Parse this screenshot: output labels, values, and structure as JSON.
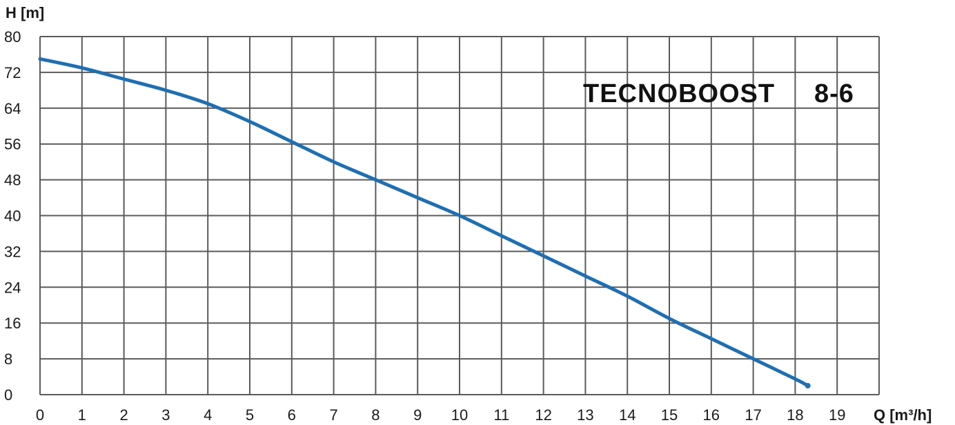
{
  "chart_data": {
    "type": "line",
    "title": "TECNOBOOST 8-6",
    "title_parts": {
      "brand": "TECNOBOOST",
      "model": "8-6"
    },
    "xlabel": "Q [m³/h]",
    "ylabel": "H [m]",
    "xlim": [
      0,
      20
    ],
    "ylim": [
      0,
      80
    ],
    "xticks": [
      "0",
      "1",
      "2",
      "3",
      "4",
      "5",
      "6",
      "7",
      "8",
      "9",
      "10",
      "11",
      "12",
      "13",
      "14",
      "15",
      "16",
      "17",
      "18",
      "19"
    ],
    "yticks": [
      "0",
      "8",
      "16",
      "24",
      "32",
      "40",
      "48",
      "56",
      "64",
      "72",
      "80"
    ],
    "grid": true,
    "legend": "none",
    "series": [
      {
        "color": "#1f6fb2",
        "points": [
          {
            "x": 0,
            "y": 75
          },
          {
            "x": 1,
            "y": 73
          },
          {
            "x": 2,
            "y": 70.5
          },
          {
            "x": 3,
            "y": 68
          },
          {
            "x": 4,
            "y": 65
          },
          {
            "x": 5,
            "y": 61
          },
          {
            "x": 6,
            "y": 56.5
          },
          {
            "x": 7,
            "y": 52
          },
          {
            "x": 8,
            "y": 48
          },
          {
            "x": 9,
            "y": 44
          },
          {
            "x": 10,
            "y": 40
          },
          {
            "x": 11,
            "y": 35.5
          },
          {
            "x": 12,
            "y": 31
          },
          {
            "x": 13,
            "y": 26.5
          },
          {
            "x": 14,
            "y": 22
          },
          {
            "x": 15,
            "y": 17
          },
          {
            "x": 16,
            "y": 12.5
          },
          {
            "x": 17,
            "y": 8
          },
          {
            "x": 18,
            "y": 3.5
          },
          {
            "x": 18.3,
            "y": 2
          }
        ]
      }
    ]
  }
}
